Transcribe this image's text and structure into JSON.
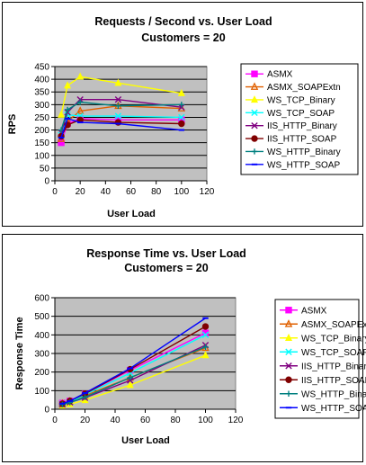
{
  "chart_data": [
    {
      "type": "line",
      "title": "Requests / Second  vs.  User Load",
      "subtitle": "Customers = 20",
      "xlabel": "User Load",
      "ylabel": "RPS",
      "xlim": [
        0,
        120
      ],
      "ylim": [
        0,
        450
      ],
      "xticks": [
        0,
        20,
        40,
        60,
        80,
        100,
        120
      ],
      "yticks": [
        0,
        50,
        100,
        150,
        200,
        250,
        300,
        350,
        400,
        450
      ],
      "grid": true,
      "legend": "right",
      "x": [
        5,
        10,
        20,
        50,
        100
      ],
      "series": [
        {
          "name": "ASMX",
          "color": "#ff00ff",
          "marker": "square",
          "values": [
            150,
            225,
            245,
            240,
            240
          ]
        },
        {
          "name": "ASMX_SOAPExtn",
          "color": "#e06000",
          "marker": "triangle-open",
          "values": [
            165,
            235,
            275,
            295,
            285
          ]
        },
        {
          "name": "WS_TCP_Binary",
          "color": "#ffff00",
          "marker": "triangle",
          "values": [
            260,
            375,
            410,
            385,
            345
          ]
        },
        {
          "name": "WS_TCP_SOAP",
          "color": "#00ffff",
          "marker": "x",
          "values": [
            180,
            260,
            255,
            255,
            250
          ]
        },
        {
          "name": "IIS_HTTP_Binary",
          "color": "#800080",
          "marker": "x",
          "values": [
            190,
            270,
            320,
            320,
            290
          ]
        },
        {
          "name": "IIS_HTTP_SOAP",
          "color": "#800000",
          "marker": "circle",
          "values": [
            175,
            220,
            240,
            230,
            225
          ]
        },
        {
          "name": "WS_HTTP_Binary",
          "color": "#008080",
          "marker": "plus",
          "values": [
            200,
            280,
            310,
            295,
            300
          ]
        },
        {
          "name": "WS_HTTP_SOAP",
          "color": "#0000ff",
          "marker": "dash",
          "values": [
            170,
            245,
            230,
            225,
            200
          ]
        }
      ]
    },
    {
      "type": "line",
      "title": "Response Time  vs.  User Load",
      "subtitle": "Customers = 20",
      "xlabel": "User Load",
      "ylabel": "Response Time",
      "xlim": [
        0,
        120
      ],
      "ylim": [
        0,
        600
      ],
      "xticks": [
        0,
        20,
        40,
        60,
        80,
        100,
        120
      ],
      "yticks": [
        0,
        100,
        200,
        300,
        400,
        500,
        600
      ],
      "grid": true,
      "legend": "right",
      "x": [
        5,
        10,
        20,
        50,
        100
      ],
      "series": [
        {
          "name": "ASMX",
          "color": "#ff00ff",
          "marker": "square",
          "values": [
            33,
            44,
            82,
            210,
            410
          ]
        },
        {
          "name": "ASMX_SOAPExtn",
          "color": "#e06000",
          "marker": "triangle-open",
          "values": [
            30,
            42,
            73,
            170,
            330
          ]
        },
        {
          "name": "WS_TCP_Binary",
          "color": "#ffff00",
          "marker": "triangle",
          "values": [
            19,
            27,
            49,
            130,
            290
          ]
        },
        {
          "name": "WS_TCP_SOAP",
          "color": "#00ffff",
          "marker": "x",
          "values": [
            28,
            38,
            78,
            195,
            400
          ]
        },
        {
          "name": "IIS_HTTP_Binary",
          "color": "#800080",
          "marker": "x",
          "values": [
            26,
            37,
            62,
            155,
            345
          ]
        },
        {
          "name": "IIS_HTTP_SOAP",
          "color": "#800000",
          "marker": "circle",
          "values": [
            29,
            45,
            83,
            215,
            445
          ]
        },
        {
          "name": "WS_HTTP_Binary",
          "color": "#008080",
          "marker": "plus",
          "values": [
            25,
            36,
            65,
            170,
            335
          ]
        },
        {
          "name": "WS_HTTP_SOAP",
          "color": "#0000ff",
          "marker": "dash",
          "values": [
            30,
            44,
            87,
            220,
            490
          ]
        }
      ]
    }
  ]
}
